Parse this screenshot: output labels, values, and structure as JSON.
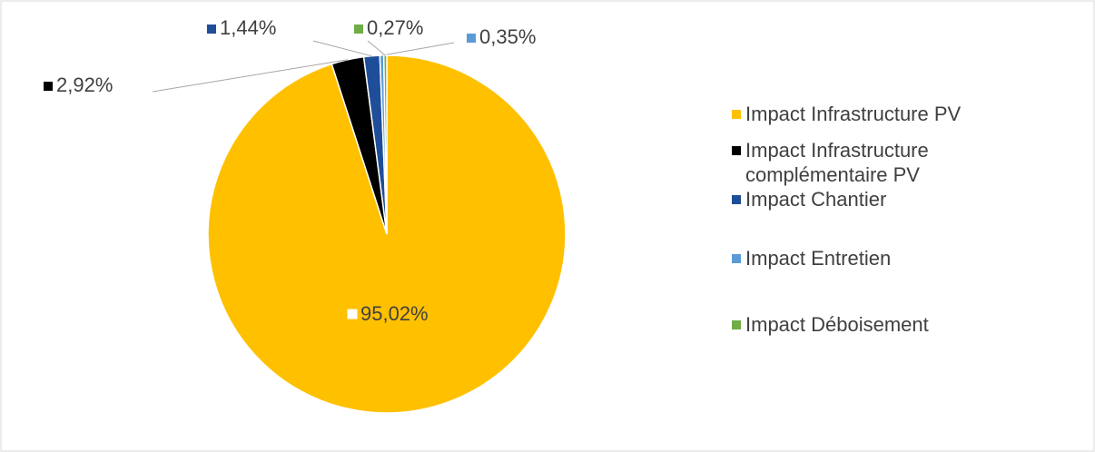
{
  "chart_data": {
    "type": "pie",
    "categories": [
      "Impact Infrastructure PV",
      "Impact Infrastructure complémentaire PV",
      "Impact Chantier",
      "Impact Entretien",
      "Impact Déboisement"
    ],
    "values": [
      95.02,
      2.92,
      1.44,
      0.35,
      0.27
    ],
    "value_labels": [
      "95,02%",
      "2,92%",
      "1,44%",
      "0,35%",
      "0,27%"
    ],
    "colors": [
      "#FFC000",
      "#000000",
      "#1F4E99",
      "#5B9BD5",
      "#70AD47"
    ],
    "legend": "right"
  }
}
